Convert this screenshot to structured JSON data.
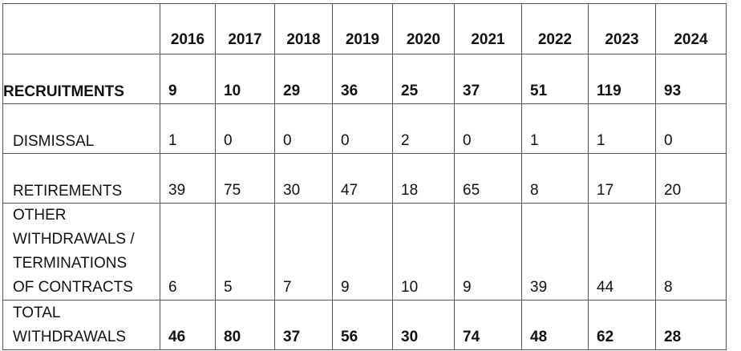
{
  "years": [
    "2016",
    "2017",
    "2018",
    "2019",
    "2020",
    "2021",
    "2022",
    "2023",
    "2024"
  ],
  "rows": [
    {
      "label": "RECRUITMENTS",
      "values": [
        "9",
        "10",
        "29",
        "36",
        "25",
        "37",
        "51",
        "119",
        "93"
      ]
    },
    {
      "label": "DISMISSAL",
      "values": [
        "1",
        "0",
        "0",
        "0",
        "2",
        "0",
        "1",
        "1",
        "0"
      ]
    },
    {
      "label": "RETIREMENTS",
      "values": [
        "39",
        "75",
        "30",
        "47",
        "18",
        "65",
        "8",
        "17",
        "20"
      ]
    },
    {
      "label_lines": [
        "OTHER",
        "WITHDRAWALS /",
        "TERMINATIONS",
        "OF CONTRACTS"
      ],
      "values": [
        "6",
        "5",
        "7",
        "9",
        "10",
        "9",
        "39",
        "44",
        "8"
      ]
    },
    {
      "label_lines": [
        "TOTAL",
        "WITHDRAWALS"
      ],
      "values": [
        "46",
        "80",
        "37",
        "56",
        "30",
        "74",
        "48",
        "62",
        "28"
      ]
    }
  ]
}
